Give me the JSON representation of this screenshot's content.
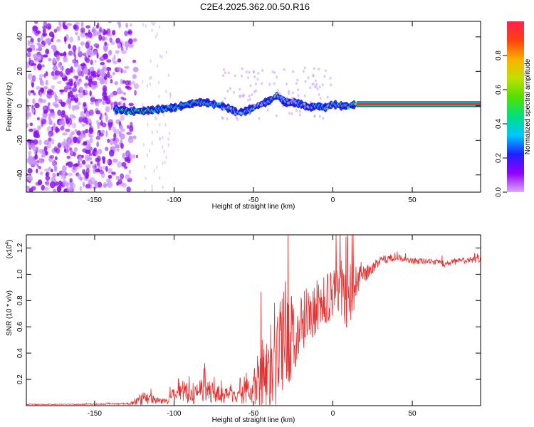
{
  "title": "C2E4.2025.362.00.50.R16",
  "chart_data": [
    {
      "type": "heatmap",
      "xlabel": "Height of straight line (km)",
      "ylabel": "Frequency (Hz)",
      "xlim": [
        -193,
        93
      ],
      "ylim": [
        -50,
        49
      ],
      "xticks": [
        -150,
        -100,
        -50,
        0,
        50
      ],
      "yticks": [
        -40,
        -20,
        0,
        20,
        40
      ],
      "colorbar": {
        "label": "Normalized spectral amplitude",
        "range": [
          0,
          1
        ],
        "ticks": [
          "0.0",
          "0.2",
          "0.4",
          "0.6",
          "0.8"
        ],
        "colors": [
          "#e0a8ff",
          "#9000ff",
          "#2020ff",
          "#00c8ff",
          "#00e080",
          "#50e000",
          "#c0e000",
          "#ffb000",
          "#ff4010",
          "#ff2050"
        ]
      },
      "ridge": {
        "x": [
          -137,
          -130,
          -120,
          -110,
          -100,
          -95,
          -90,
          -85,
          -80,
          -75,
          -70,
          -64,
          -60,
          -55,
          -50,
          -45,
          -40,
          -35,
          -30,
          -25,
          -20,
          -15,
          -10,
          -5,
          0,
          5,
          10,
          15,
          93
        ],
        "freq": [
          -2,
          -3,
          -3,
          -2,
          -1,
          0,
          1,
          2,
          2,
          1,
          0,
          -2,
          -4,
          -3,
          -1,
          1,
          3,
          6,
          2,
          2,
          1,
          -1,
          0,
          -1,
          1,
          0,
          0,
          1,
          1
        ]
      }
    },
    {
      "type": "line",
      "xlabel": "Height of straight line (km)",
      "ylabel": "SNR (10 * v/v)",
      "scale_label": "(x10",
      "scale_exponent": "4",
      "xlim": [
        -193,
        93
      ],
      "ylim": [
        0.0,
        1.3
      ],
      "xticks": [
        -150,
        -100,
        -50,
        0,
        50
      ],
      "yticks": [
        0.2,
        0.4,
        0.6,
        0.8,
        1.0,
        1.2
      ],
      "ytick_labels": [
        "0.2",
        "0.4",
        "0.6",
        "0.8",
        "1.0",
        "1.2"
      ],
      "color": "#e83030",
      "envelope": {
        "x": [
          -193,
          -160,
          -130,
          -125,
          -120,
          -115,
          -110,
          -105,
          -100,
          -95,
          -90,
          -85,
          -80,
          -75,
          -70,
          -65,
          -60,
          -55,
          -50,
          -45,
          -40,
          -35,
          -30,
          -25,
          -20,
          -15,
          -10,
          -5,
          0,
          5,
          10,
          15,
          20,
          25,
          30,
          35,
          40,
          50,
          60,
          70,
          80,
          93
        ],
        "base": [
          0.01,
          0.01,
          0.015,
          0.02,
          0.05,
          0.05,
          0.04,
          0.03,
          0.08,
          0.1,
          0.09,
          0.1,
          0.11,
          0.1,
          0.08,
          0.09,
          0.08,
          0.1,
          0.14,
          0.2,
          0.3,
          0.35,
          0.45,
          0.55,
          0.65,
          0.7,
          0.75,
          0.8,
          0.85,
          0.9,
          0.8,
          0.95,
          1.0,
          1.05,
          1.1,
          1.12,
          1.13,
          1.1,
          1.1,
          1.08,
          1.1,
          1.11
        ],
        "spike": [
          0.005,
          0.005,
          0.01,
          0.03,
          0.1,
          0.06,
          0.04,
          0.03,
          0.1,
          0.12,
          0.14,
          0.15,
          0.16,
          0.12,
          0.1,
          0.1,
          0.1,
          0.15,
          0.2,
          0.5,
          0.55,
          0.6,
          0.55,
          0.55,
          0.4,
          0.35,
          0.35,
          0.3,
          0.35,
          0.35,
          0.5,
          0.2,
          0.1,
          0.08,
          0.06,
          0.05,
          0.04,
          0.04,
          0.04,
          0.04,
          0.04,
          0.04
        ]
      }
    }
  ]
}
